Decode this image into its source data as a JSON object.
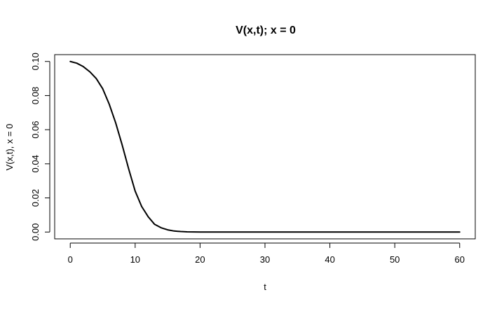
{
  "chart_data": {
    "type": "line",
    "title": "V(x,t); x = 0",
    "xlabel": "t",
    "ylabel": "V(x,t), x = 0",
    "xlim": [
      -2.4,
      62.4
    ],
    "ylim": [
      -0.004,
      0.104
    ],
    "xticks": [
      0,
      10,
      20,
      30,
      40,
      50,
      60
    ],
    "xtick_labels": [
      "0",
      "10",
      "20",
      "30",
      "40",
      "50",
      "60"
    ],
    "yticks": [
      0.0,
      0.02,
      0.04,
      0.06,
      0.08,
      0.1
    ],
    "ytick_labels": [
      "0.00",
      "0.02",
      "0.04",
      "0.06",
      "0.08",
      "0.10"
    ],
    "grid": false,
    "legend": "none",
    "line_color": "#000000",
    "series": [
      {
        "x": [
          0,
          1,
          2,
          3,
          4,
          5,
          6,
          7,
          8,
          9,
          10,
          11,
          12,
          13,
          14,
          15,
          16,
          17,
          18,
          19,
          20,
          25,
          30,
          35,
          40,
          45,
          50,
          55,
          60
        ],
        "values": [
          0.1,
          0.099,
          0.097,
          0.094,
          0.09,
          0.084,
          0.075,
          0.064,
          0.051,
          0.037,
          0.024,
          0.015,
          0.009,
          0.0045,
          0.0025,
          0.0013,
          0.0006,
          0.0003,
          0.0001,
          5e-05,
          0.0,
          0.0,
          0.0,
          0.0,
          0.0,
          0.0,
          0.0,
          0.0,
          0.0
        ]
      }
    ]
  }
}
